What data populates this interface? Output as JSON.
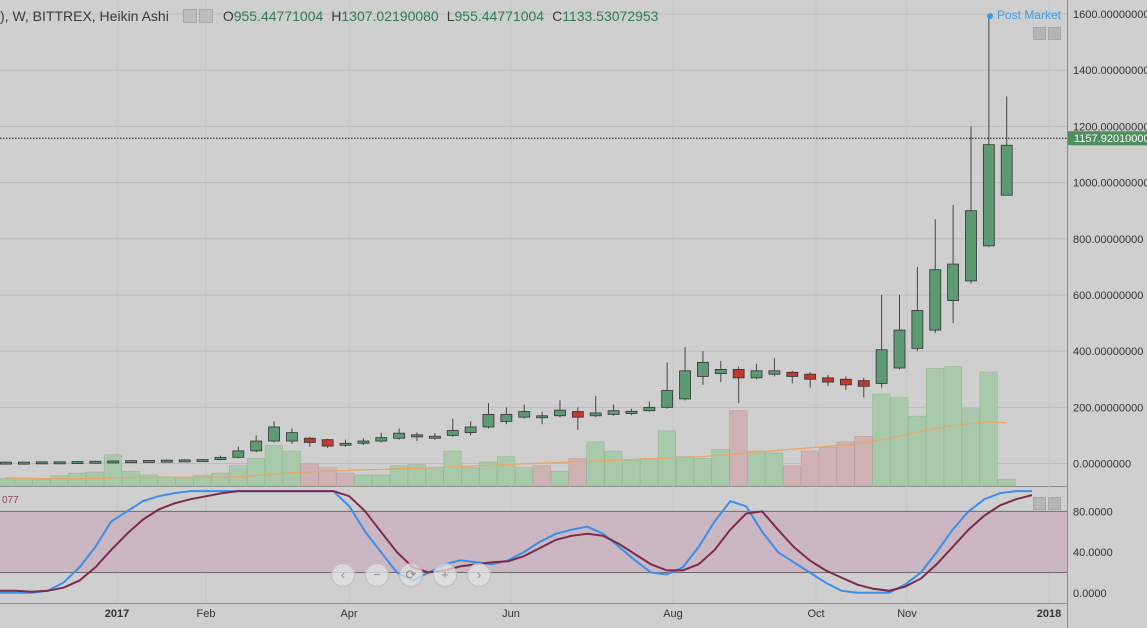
{
  "header": {
    "symbol": "), W, BITTREX, Heikin Ashi",
    "o_label": "O",
    "o_value": "955.44771004",
    "h_label": "H",
    "h_value": "1307.02190080",
    "l_label": "L",
    "l_value": "955.44771004",
    "c_label": "C",
    "c_value": "1133.53072953",
    "post_market": "Post Market"
  },
  "oscillator_label": "077",
  "nav_buttons": [
    "‹",
    "−",
    "⟳",
    "+",
    "›"
  ],
  "colors": {
    "background": "#cfcfcf",
    "osc_band": "#cbb7c2",
    "up": "#5d9a73",
    "down": "#c0392b",
    "vol_up": "#a9c9ab",
    "vol_down": "#cfb2b4",
    "ma": "#e8a76a",
    "osc_k": "#3b8fe6",
    "osc_d": "#7d2a4d",
    "price_tag": "#4d8f5f"
  },
  "chart_data": [
    {
      "type": "candlestick",
      "title": "), W, BITTREX, Heikin Ashi",
      "x_tick_labels": [
        "2017",
        "Feb",
        "Apr",
        "Jun",
        "Aug",
        "Oct",
        "Nov",
        "2018"
      ],
      "y_tick_labels": [
        "1600.00000000",
        "1400.00000000",
        "1200.00000000",
        "1000.00000000",
        "800.00000000",
        "600.00000000",
        "400.00000000",
        "200.00000000",
        "0.00000000"
      ],
      "ylim": [
        -80,
        1650
      ],
      "last_price": 1157.9201,
      "last_price_label": "1157.92010000",
      "candles": [
        {
          "o": 4,
          "c": 5,
          "h": 6,
          "l": 3
        },
        {
          "o": 5,
          "c": 5,
          "h": 6,
          "l": 4
        },
        {
          "o": 5,
          "c": 6,
          "h": 7,
          "l": 4
        },
        {
          "o": 6,
          "c": 6,
          "h": 7,
          "l": 5
        },
        {
          "o": 6,
          "c": 7,
          "h": 8,
          "l": 5
        },
        {
          "o": 7,
          "c": 8,
          "h": 10,
          "l": 6
        },
        {
          "o": 8,
          "c": 9,
          "h": 11,
          "l": 7
        },
        {
          "o": 9,
          "c": 10,
          "h": 12,
          "l": 8
        },
        {
          "o": 10,
          "c": 11,
          "h": 13,
          "l": 9
        },
        {
          "o": 11,
          "c": 12,
          "h": 14,
          "l": 10
        },
        {
          "o": 12,
          "c": 13,
          "h": 15,
          "l": 11
        },
        {
          "o": 13,
          "c": 14,
          "h": 16,
          "l": 12
        },
        {
          "o": 14,
          "c": 22,
          "h": 28,
          "l": 12
        },
        {
          "o": 22,
          "c": 45,
          "h": 60,
          "l": 18
        },
        {
          "o": 45,
          "c": 80,
          "h": 100,
          "l": 40
        },
        {
          "o": 80,
          "c": 130,
          "h": 150,
          "l": 75
        },
        {
          "o": 80,
          "c": 110,
          "h": 125,
          "l": 70
        },
        {
          "o": 90,
          "c": 75,
          "h": 95,
          "l": 60
        },
        {
          "o": 85,
          "c": 62,
          "h": 88,
          "l": 55
        },
        {
          "o": 70,
          "c": 72,
          "h": 85,
          "l": 60
        },
        {
          "o": 72,
          "c": 80,
          "h": 90,
          "l": 66
        },
        {
          "o": 80,
          "c": 92,
          "h": 110,
          "l": 75
        },
        {
          "o": 90,
          "c": 108,
          "h": 125,
          "l": 85
        },
        {
          "o": 95,
          "c": 102,
          "h": 110,
          "l": 80
        },
        {
          "o": 95,
          "c": 97,
          "h": 108,
          "l": 85
        },
        {
          "o": 100,
          "c": 118,
          "h": 160,
          "l": 95
        },
        {
          "o": 110,
          "c": 130,
          "h": 150,
          "l": 100
        },
        {
          "o": 130,
          "c": 175,
          "h": 215,
          "l": 125
        },
        {
          "o": 150,
          "c": 175,
          "h": 200,
          "l": 140
        },
        {
          "o": 165,
          "c": 185,
          "h": 210,
          "l": 160
        },
        {
          "o": 165,
          "c": 170,
          "h": 185,
          "l": 140
        },
        {
          "o": 170,
          "c": 190,
          "h": 225,
          "l": 165
        },
        {
          "o": 185,
          "c": 165,
          "h": 200,
          "l": 120
        },
        {
          "o": 170,
          "c": 180,
          "h": 240,
          "l": 165
        },
        {
          "o": 175,
          "c": 188,
          "h": 210,
          "l": 170
        },
        {
          "o": 178,
          "c": 186,
          "h": 195,
          "l": 172
        },
        {
          "o": 188,
          "c": 200,
          "h": 220,
          "l": 185
        },
        {
          "o": 200,
          "c": 260,
          "h": 360,
          "l": 195
        },
        {
          "o": 230,
          "c": 330,
          "h": 415,
          "l": 225
        },
        {
          "o": 310,
          "c": 360,
          "h": 400,
          "l": 280
        },
        {
          "o": 320,
          "c": 335,
          "h": 365,
          "l": 290
        },
        {
          "o": 335,
          "c": 305,
          "h": 345,
          "l": 215
        },
        {
          "o": 305,
          "c": 330,
          "h": 355,
          "l": 300
        },
        {
          "o": 318,
          "c": 330,
          "h": 375,
          "l": 310
        },
        {
          "o": 325,
          "c": 310,
          "h": 330,
          "l": 285
        },
        {
          "o": 318,
          "c": 300,
          "h": 325,
          "l": 270
        },
        {
          "o": 305,
          "c": 290,
          "h": 315,
          "l": 275
        },
        {
          "o": 300,
          "c": 280,
          "h": 310,
          "l": 262
        },
        {
          "o": 295,
          "c": 275,
          "h": 305,
          "l": 235
        },
        {
          "o": 285,
          "c": 405,
          "h": 600,
          "l": 270
        },
        {
          "o": 340,
          "c": 475,
          "h": 600,
          "l": 335
        },
        {
          "o": 410,
          "c": 545,
          "h": 700,
          "l": 400
        },
        {
          "o": 475,
          "c": 690,
          "h": 870,
          "l": 465
        },
        {
          "o": 580,
          "c": 710,
          "h": 920,
          "l": 500
        },
        {
          "o": 650,
          "c": 900,
          "h": 1200,
          "l": 640
        },
        {
          "o": 775,
          "c": 1135,
          "h": 1600,
          "l": 770
        },
        {
          "o": 955,
          "c": 1133,
          "h": 1307,
          "l": 955
        }
      ],
      "volume": [
        {
          "v": 20,
          "up": true
        },
        {
          "v": 22,
          "up": true
        },
        {
          "v": 18,
          "up": true
        },
        {
          "v": 28,
          "up": true
        },
        {
          "v": 35,
          "up": true
        },
        {
          "v": 38,
          "up": true
        },
        {
          "v": 85,
          "up": true
        },
        {
          "v": 40,
          "up": true
        },
        {
          "v": 30,
          "up": true
        },
        {
          "v": 25,
          "up": true
        },
        {
          "v": 20,
          "up": true
        },
        {
          "v": 28,
          "up": true
        },
        {
          "v": 35,
          "up": true
        },
        {
          "v": 55,
          "up": true
        },
        {
          "v": 75,
          "up": true
        },
        {
          "v": 110,
          "up": true
        },
        {
          "v": 95,
          "up": true
        },
        {
          "v": 60,
          "up": false
        },
        {
          "v": 50,
          "up": false
        },
        {
          "v": 35,
          "up": false
        },
        {
          "v": 30,
          "up": true
        },
        {
          "v": 30,
          "up": true
        },
        {
          "v": 55,
          "up": true
        },
        {
          "v": 58,
          "up": true
        },
        {
          "v": 50,
          "up": true
        },
        {
          "v": 95,
          "up": true
        },
        {
          "v": 50,
          "up": true
        },
        {
          "v": 65,
          "up": true
        },
        {
          "v": 80,
          "up": true
        },
        {
          "v": 50,
          "up": true
        },
        {
          "v": 55,
          "up": false
        },
        {
          "v": 40,
          "up": true
        },
        {
          "v": 75,
          "up": false
        },
        {
          "v": 120,
          "up": true
        },
        {
          "v": 95,
          "up": true
        },
        {
          "v": 70,
          "up": true
        },
        {
          "v": 75,
          "up": true
        },
        {
          "v": 150,
          "up": true
        },
        {
          "v": 80,
          "up": true
        },
        {
          "v": 75,
          "up": true
        },
        {
          "v": 100,
          "up": true
        },
        {
          "v": 205,
          "up": false
        },
        {
          "v": 95,
          "up": true
        },
        {
          "v": 90,
          "up": true
        },
        {
          "v": 55,
          "up": false
        },
        {
          "v": 95,
          "up": false
        },
        {
          "v": 105,
          "up": false
        },
        {
          "v": 120,
          "up": false
        },
        {
          "v": 135,
          "up": false
        },
        {
          "v": 250,
          "up": true
        },
        {
          "v": 240,
          "up": true
        },
        {
          "v": 190,
          "up": true
        },
        {
          "v": 320,
          "up": true
        },
        {
          "v": 325,
          "up": true
        },
        {
          "v": 210,
          "up": true
        },
        {
          "v": 310,
          "up": true
        },
        {
          "v": 18,
          "up": true
        }
      ],
      "moving_average": [
        22,
        21,
        20,
        20,
        20,
        20,
        22,
        23,
        23,
        24,
        24,
        24,
        24,
        25,
        28,
        32,
        36,
        38,
        40,
        42,
        44,
        45,
        47,
        48,
        50,
        52,
        54,
        56,
        58,
        60,
        62,
        64,
        66,
        68,
        70,
        72,
        74,
        76,
        78,
        80,
        84,
        88,
        92,
        96,
        100,
        104,
        108,
        112,
        118,
        126,
        136,
        146,
        156,
        164,
        170,
        174,
        172
      ]
    },
    {
      "type": "line",
      "y_tick_labels": [
        "80.0000",
        "40.0000",
        "0.0000"
      ],
      "ylim": [
        -10,
        104
      ],
      "band": [
        20,
        80
      ],
      "series": [
        {
          "values": [
            0,
            0,
            0,
            2,
            10,
            25,
            45,
            70,
            80,
            90,
            95,
            98,
            100,
            100,
            100,
            100,
            100,
            100,
            100,
            100,
            100,
            100,
            85,
            60,
            40,
            20,
            12,
            20,
            28,
            32,
            30,
            28,
            32,
            40,
            50,
            58,
            62,
            65,
            58,
            45,
            32,
            20,
            18,
            25,
            45,
            70,
            90,
            85,
            60,
            40,
            30,
            20,
            10,
            2,
            0,
            0,
            0,
            8,
            20,
            40,
            62,
            80,
            92,
            98,
            100,
            100
          ]
        },
        {
          "values": [
            2,
            2,
            1,
            2,
            5,
            12,
            25,
            42,
            58,
            72,
            82,
            88,
            92,
            95,
            98,
            100,
            100,
            100,
            100,
            100,
            100,
            100,
            95,
            80,
            60,
            40,
            25,
            20,
            22,
            26,
            28,
            30,
            31,
            36,
            44,
            52,
            56,
            58,
            56,
            48,
            38,
            28,
            22,
            22,
            28,
            42,
            62,
            78,
            80,
            62,
            45,
            32,
            22,
            15,
            8,
            4,
            2,
            6,
            14,
            28,
            45,
            62,
            76,
            86,
            92,
            96
          ]
        }
      ]
    }
  ]
}
